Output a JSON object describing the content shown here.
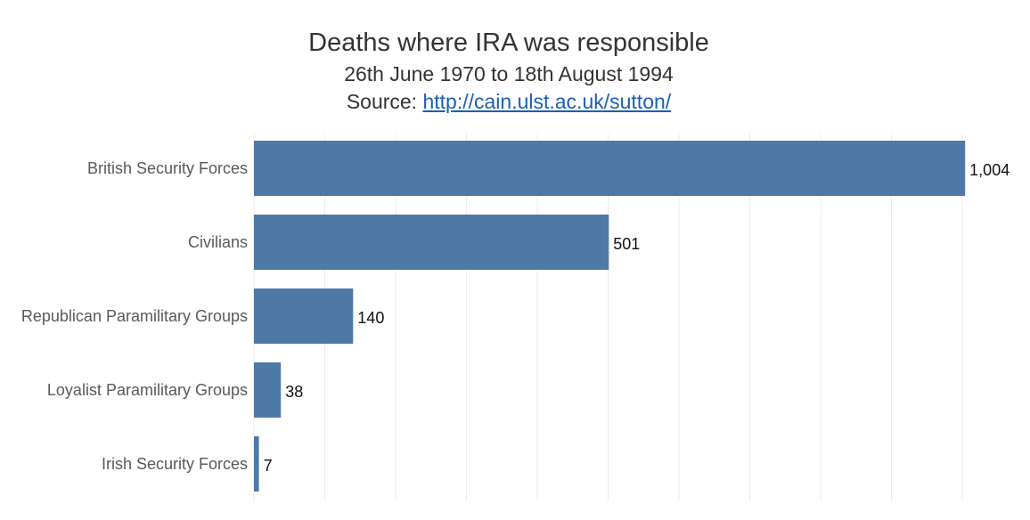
{
  "header": {
    "title": "Deaths where IRA was responsible",
    "subtitle": "26th June 1970 to 18th August 1994",
    "source_prefix": "Source:",
    "source_link": "http://cain.ulst.ac.uk/sutton/"
  },
  "chart_data": {
    "type": "bar",
    "orientation": "horizontal",
    "title": "Deaths where IRA was responsible",
    "subtitle": "26th June 1970 to 18th August 1994",
    "categories": [
      "British Security Forces",
      "Civilians",
      "Republican Paramilitary Groups",
      "Loyalist Paramilitary Groups",
      "Irish Security Forces"
    ],
    "values": [
      1004,
      501,
      140,
      38,
      7
    ],
    "data_labels": [
      "1,004",
      "501",
      "140",
      "38",
      "7"
    ],
    "xlabel": "",
    "ylabel": "",
    "xlim": [
      0,
      1050
    ],
    "grid": "vertical",
    "legend": "none",
    "colors": {
      "bar": "#4e79a7",
      "grid": "#ebebeb",
      "category_text": "#595959",
      "value_text": "#111111"
    }
  }
}
